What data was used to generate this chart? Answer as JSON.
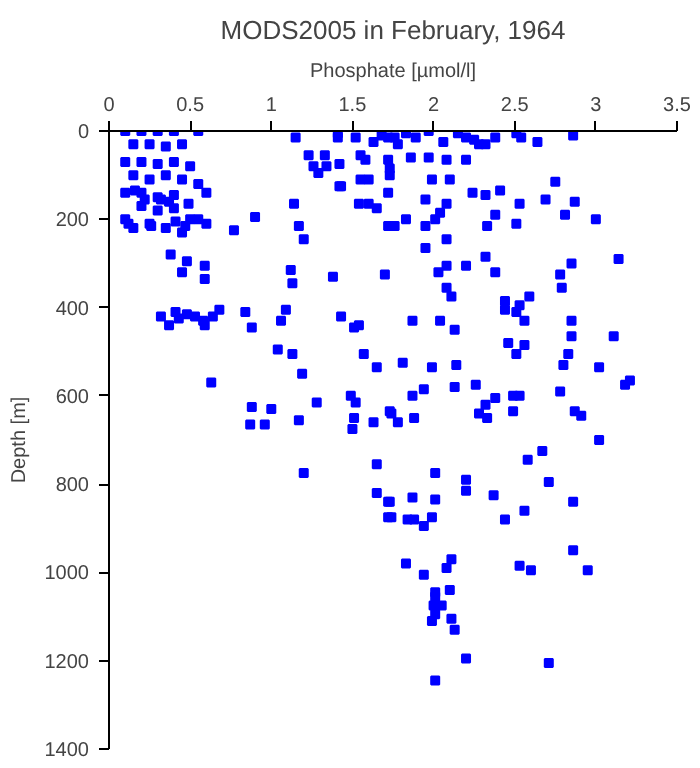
{
  "chart_data": {
    "type": "scatter",
    "title": "MODS2005 in February, 1964",
    "xlabel": "Phosphate [µmol/l]",
    "ylabel": "Depth [m]",
    "xlim": [
      0,
      3.5
    ],
    "xticks": [
      0,
      0.5,
      1,
      1.5,
      2,
      2.5,
      3,
      3.5
    ],
    "ylim": [
      1400,
      0
    ],
    "yticks": [
      0,
      200,
      400,
      600,
      800,
      1000,
      1200,
      1400
    ],
    "grid": false,
    "marker": "square",
    "series": [
      {
        "color": "#0000ff",
        "x": [
          0.1,
          0.2,
          0.3,
          0.4,
          0.55,
          0.15,
          0.25,
          0.35,
          0.45,
          0.1,
          0.2,
          0.3,
          0.4,
          0.5,
          0.15,
          0.25,
          0.35,
          0.45,
          0.55,
          0.1,
          0.2,
          0.3,
          0.4,
          0.6,
          0.2,
          0.3,
          0.4,
          0.1,
          0.25,
          0.35,
          0.5,
          0.6,
          0.15,
          0.45,
          0.12,
          0.26,
          0.41,
          0.47,
          0.55,
          0.22,
          0.32,
          0.37,
          0.49,
          0.16,
          0.38,
          0.48,
          0.45,
          0.59,
          0.59,
          0.32,
          0.37,
          0.41,
          0.43,
          0.48,
          0.53,
          0.58,
          0.59,
          0.64,
          0.68,
          0.63,
          0.9,
          0.77,
          1.14,
          1.17,
          1.2,
          1.12,
          1.13,
          1.38,
          1.7,
          1.43,
          1.51,
          1.54,
          1.57,
          1.65,
          1.04,
          1.13,
          1.19,
          1.28,
          0.88,
          1.0,
          0.87,
          0.96,
          1.17,
          1.49,
          1.52,
          1.51,
          1.5,
          1.63,
          1.73,
          1.65,
          0.84,
          0.88,
          1.06,
          1.09,
          1.6,
          1.65,
          1.72,
          1.72,
          1.43,
          1.54,
          1.95,
          2.08,
          2.24,
          2.32,
          2.41,
          2.53,
          2.69,
          2.87,
          1.76,
          1.83,
          1.95,
          2.01,
          2.04,
          2.33,
          2.38,
          2.51,
          2.81,
          3.0,
          1.95,
          2.08,
          2.08,
          2.03,
          2.2,
          2.32,
          2.38,
          2.08,
          2.11,
          2.44,
          2.53,
          2.59,
          2.78,
          2.79,
          2.85,
          3.14,
          1.87,
          2.04,
          2.13,
          2.44,
          2.51,
          2.56,
          2.85,
          2.85,
          3.11,
          1.81,
          1.99,
          2.14,
          2.46,
          2.51,
          2.56,
          2.83,
          2.8,
          3.02,
          3.18,
          3.21,
          1.94,
          2.13,
          2.26,
          1.87,
          2.32,
          2.38,
          2.49,
          2.53,
          2.78,
          1.74,
          1.78,
          1.88,
          2.28,
          2.33,
          2.49,
          2.87,
          2.91,
          3.02,
          2.67,
          2.58,
          2.01,
          2.2,
          2.71,
          1.87,
          2.2,
          2.37,
          2.01,
          2.44,
          2.56,
          2.86,
          1.73,
          1.74,
          1.84,
          1.88,
          1.99,
          1.94,
          1.83,
          1.94,
          2.11,
          2.08,
          2.53,
          2.6,
          2.86,
          2.95,
          2.01,
          2.1,
          2.01,
          2.0,
          2.05,
          2.01,
          1.99,
          2.11,
          2.13,
          2.2,
          2.71,
          2.01,
          1.2,
          1.65,
          1.72,
          1.72,
          1.15,
          1.23,
          1.41,
          1.41,
          1.33,
          1.29,
          1.34,
          1.42,
          1.42,
          1.52,
          1.55,
          1.58,
          1.55,
          1.6,
          1.63,
          1.68,
          1.72,
          1.72,
          1.73,
          1.76,
          1.78,
          1.83,
          1.86,
          1.89,
          1.97,
          1.97,
          1.99,
          2.06,
          2.08,
          2.1,
          2.15,
          2.2,
          2.2,
          2.25,
          2.28,
          2.32,
          2.38,
          2.51,
          2.54,
          2.64,
          2.86,
          2.75,
          1.73,
          1.26
        ],
        "values": [
          0,
          0,
          0,
          0,
          0,
          30,
          30,
          35,
          30,
          70,
          70,
          75,
          70,
          80,
          100,
          110,
          100,
          110,
          120,
          140,
          140,
          150,
          145,
          140,
          170,
          180,
          175,
          200,
          210,
          220,
          200,
          210,
          220,
          230,
          210,
          215,
          205,
          215,
          200,
          155,
          155,
          160,
          165,
          135,
          280,
          295,
          320,
          305,
          335,
          420,
          440,
          410,
          425,
          415,
          420,
          430,
          440,
          420,
          405,
          570,
          195,
          225,
          165,
          215,
          245,
          315,
          345,
          330,
          325,
          420,
          445,
          440,
          505,
          535,
          495,
          505,
          550,
          615,
          625,
          630,
          665,
          665,
          655,
          600,
          615,
          650,
          675,
          660,
          635,
          755,
          410,
          445,
          430,
          405,
          165,
          175,
          140,
          215,
          125,
          165,
          155,
          165,
          140,
          145,
          135,
          165,
          155,
          160,
          215,
          200,
          215,
          200,
          185,
          215,
          190,
          210,
          190,
          200,
          265,
          245,
          305,
          320,
          305,
          285,
          320,
          355,
          375,
          385,
          395,
          375,
          325,
          355,
          300,
          290,
          430,
          430,
          450,
          405,
          410,
          430,
          430,
          465,
          465,
          525,
          535,
          530,
          480,
          505,
          485,
          505,
          530,
          535,
          575,
          565,
          585,
          580,
          575,
          600,
          620,
          605,
          600,
          600,
          590,
          640,
          660,
          650,
          640,
          650,
          635,
          635,
          645,
          700,
          725,
          745,
          775,
          790,
          795,
          830,
          815,
          825,
          835,
          880,
          860,
          840,
          840,
          875,
          880,
          880,
          875,
          895,
          980,
          1005,
          970,
          990,
          985,
          995,
          950,
          995,
          1045,
          1040,
          1055,
          1075,
          1075,
          1095,
          1110,
          1105,
          1130,
          1195,
          1205,
          1245,
          775,
          820,
          840,
          875,
          15,
          55,
          5,
          15,
          55,
          95,
          80,
          75,
          125,
          15,
          55,
          65,
          110,
          110,
          25,
          10,
          15,
          65,
          85,
          15,
          30,
          5,
          60,
          15,
          60,
          0,
          110,
          25,
          65,
          110,
          5,
          15,
          65,
          20,
          30,
          30,
          15,
          5,
          15,
          25,
          10,
          115,
          100,
          80
        ]
      }
    ]
  }
}
